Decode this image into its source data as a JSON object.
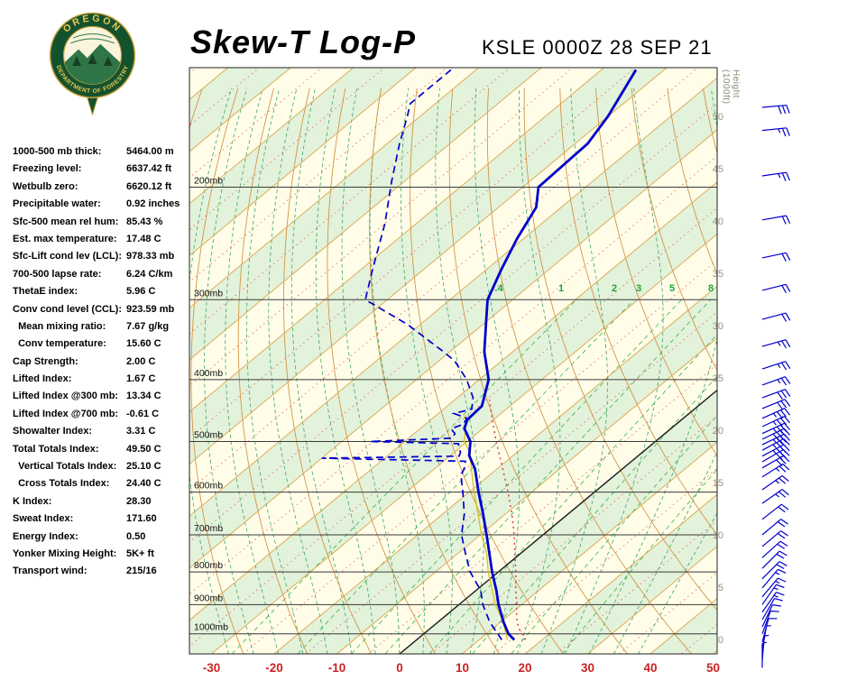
{
  "header": {
    "title": "Skew-T Log-P",
    "station": "KSLE 0000Z 28 SEP 21"
  },
  "logo": {
    "org_top": "OREGON",
    "org_bottom": "DEPARTMENT OF FORESTRY"
  },
  "indices": [
    {
      "label": "1000-500 mb thick:",
      "value": "5464.00 m"
    },
    {
      "label": "Freezing level:",
      "value": "6637.42 ft"
    },
    {
      "label": "Wetbulb zero:",
      "value": "6620.12 ft"
    },
    {
      "label": "Precipitable water:",
      "value": "0.92 inches"
    },
    {
      "label": "Sfc-500 mean rel hum:",
      "value": "85.43 %"
    },
    {
      "label": "Est. max temperature:",
      "value": "17.48 C"
    },
    {
      "label": "Sfc-Lift cond lev (LCL):",
      "value": "978.33 mb"
    },
    {
      "label": "700-500 lapse rate:",
      "value": "6.24 C/km"
    },
    {
      "label": "ThetaE index:",
      "value": "5.96 C"
    },
    {
      "label": "Conv cond level (CCL):",
      "value": "923.59 mb"
    },
    {
      "label": "  Mean mixing ratio:",
      "value": "7.67 g/kg"
    },
    {
      "label": "  Conv temperature:",
      "value": "15.60 C"
    },
    {
      "label": "Cap Strength:",
      "value": "2.00 C"
    },
    {
      "label": "Lifted Index:",
      "value": "1.67 C"
    },
    {
      "label": "Lifted Index @300 mb:",
      "value": "13.34 C"
    },
    {
      "label": "Lifted Index @700 mb:",
      "value": "-0.61 C"
    },
    {
      "label": "Showalter Index:",
      "value": "3.31 C"
    },
    {
      "label": "Total Totals Index:",
      "value": "49.50 C"
    },
    {
      "label": "  Vertical Totals Index:",
      "value": "25.10 C"
    },
    {
      "label": "  Cross Totals Index:",
      "value": "24.40 C"
    },
    {
      "label": "K Index:",
      "value": "28.30"
    },
    {
      "label": "Sweat Index:",
      "value": "171.60"
    },
    {
      "label": "Energy Index:",
      "value": "0.50"
    },
    {
      "label": "Yonker Mixing Height:",
      "value": "5K+ ft"
    },
    {
      "label": "Transport wind:",
      "value": "215/16"
    }
  ],
  "chart_data": {
    "type": "skew-t-log-p",
    "pressure_range": [
      130,
      1075
    ],
    "pressure_lines": [
      200,
      300,
      400,
      500,
      600,
      700,
      800,
      900,
      1000
    ],
    "pressure_label_suffix": "mb",
    "x_axis": {
      "unit": "C",
      "ticks": [
        -30,
        -20,
        -10,
        0,
        10,
        20,
        30,
        40,
        50
      ]
    },
    "height_scale": {
      "label_line1": "Height",
      "label_line2": "(1000ft)",
      "values": [
        50,
        45,
        40,
        35,
        30,
        25,
        20,
        15,
        10,
        5,
        0
      ]
    },
    "mixing_ratio_labels": [
      ".4",
      "1",
      "2",
      "3",
      "5",
      "8"
    ],
    "mixing_ratio_lines": [
      0.4,
      1,
      2,
      3,
      5,
      8,
      12,
      20
    ],
    "isotherm_step": 10,
    "profiles": {
      "temperature": {
        "color": "#0000cd",
        "points": [
          [
            131,
            -74.5
          ],
          [
            155,
            -70
          ],
          [
            171,
            -68
          ],
          [
            200,
            -67.5
          ],
          [
            215,
            -64
          ],
          [
            241,
            -61
          ],
          [
            270,
            -57.5
          ],
          [
            300,
            -54
          ],
          [
            328,
            -49.5
          ],
          [
            362,
            -44.5
          ],
          [
            400,
            -38.5
          ],
          [
            440,
            -34.5
          ],
          [
            462,
            -34.2
          ],
          [
            477,
            -33
          ],
          [
            500,
            -29.5
          ],
          [
            526,
            -27
          ],
          [
            552,
            -23.5
          ],
          [
            600,
            -18.5
          ],
          [
            650,
            -13.5
          ],
          [
            700,
            -9
          ],
          [
            752,
            -4.7
          ],
          [
            800,
            -1
          ],
          [
            856,
            3.3
          ],
          [
            900,
            6.3
          ],
          [
            959,
            10.5
          ],
          [
            1000,
            13.5
          ],
          [
            1022,
            15.6
          ]
        ]
      },
      "dewpoint": {
        "color": "#0000cd",
        "points": [
          [
            131,
            -104
          ],
          [
            148,
            -104
          ],
          [
            155,
            -102
          ],
          [
            171,
            -98
          ],
          [
            196,
            -92
          ],
          [
            228,
            -85
          ],
          [
            270,
            -78
          ],
          [
            300,
            -73.5
          ],
          [
            328,
            -62
          ],
          [
            362,
            -51
          ],
          [
            374,
            -47.5
          ],
          [
            400,
            -42
          ],
          [
            427,
            -37.5
          ],
          [
            445,
            -35.5
          ],
          [
            452,
            -37.5
          ],
          [
            460,
            -34.5
          ],
          [
            470,
            -34
          ],
          [
            478,
            -35
          ],
          [
            486,
            -33.5
          ],
          [
            494,
            -33
          ],
          [
            500,
            -45.5
          ],
          [
            504,
            -31
          ],
          [
            512,
            -30
          ],
          [
            520,
            -29
          ],
          [
            527,
            -28.5
          ],
          [
            531,
            -50
          ],
          [
            537,
            -26.5
          ],
          [
            548,
            -25.5
          ],
          [
            565,
            -24.5
          ],
          [
            600,
            -21
          ],
          [
            650,
            -16.5
          ],
          [
            700,
            -13
          ],
          [
            752,
            -8.5
          ],
          [
            800,
            -4.5
          ],
          [
            856,
            0.8
          ],
          [
            900,
            3.8
          ],
          [
            959,
            8.3
          ],
          [
            1000,
            11.8
          ],
          [
            1022,
            13.6
          ]
        ]
      },
      "wetbulb": {
        "color": "#d8c422",
        "points": [
          [
            1022,
            14.5
          ],
          [
            950,
            9.8
          ],
          [
            900,
            5.8
          ],
          [
            850,
            2.2
          ],
          [
            800,
            -1.6
          ],
          [
            750,
            -5.3
          ],
          [
            700,
            -9.8
          ],
          [
            650,
            -14.3
          ],
          [
            600,
            -19.2
          ],
          [
            550,
            -24.3
          ],
          [
            520,
            -27.5
          ],
          [
            500,
            -30.5
          ],
          [
            470,
            -33.5
          ],
          [
            455,
            -35.5
          ]
        ]
      },
      "parcel": {
        "color": "#d94040",
        "points": [
          [
            1022,
            17.4
          ],
          [
            978,
            13.9
          ],
          [
            940,
            11.5
          ],
          [
            900,
            9.2
          ],
          [
            850,
            6
          ],
          [
            800,
            2.8
          ],
          [
            750,
            -0.8
          ],
          [
            700,
            -4.6
          ],
          [
            650,
            -8.9
          ],
          [
            600,
            -13.8
          ],
          [
            550,
            -19.3
          ],
          [
            500,
            -25.4
          ],
          [
            460,
            -30.5
          ],
          [
            430,
            -34.5
          ]
        ]
      }
    },
    "winds": {
      "color": "#0000cd",
      "barbs": [
        {
          "p": 150,
          "dir": 265,
          "kt": 30
        },
        {
          "p": 163,
          "dir": 264,
          "kt": 27
        },
        {
          "p": 192,
          "dir": 262,
          "kt": 24
        },
        {
          "p": 225,
          "dir": 260,
          "kt": 22
        },
        {
          "p": 258,
          "dir": 258,
          "kt": 20
        },
        {
          "p": 290,
          "dir": 256,
          "kt": 20
        },
        {
          "p": 322,
          "dir": 255,
          "kt": 22
        },
        {
          "p": 355,
          "dir": 254,
          "kt": 25
        },
        {
          "p": 385,
          "dir": 252,
          "kt": 26
        },
        {
          "p": 408,
          "dir": 250,
          "kt": 27
        },
        {
          "p": 427,
          "dir": 250,
          "kt": 29
        },
        {
          "p": 444,
          "dir": 248,
          "kt": 31
        },
        {
          "p": 460,
          "dir": 246,
          "kt": 33
        },
        {
          "p": 474,
          "dir": 245,
          "kt": 35
        },
        {
          "p": 486,
          "dir": 245,
          "kt": 36
        },
        {
          "p": 496,
          "dir": 244,
          "kt": 38
        },
        {
          "p": 506,
          "dir": 244,
          "kt": 36
        },
        {
          "p": 516,
          "dir": 242,
          "kt": 35
        },
        {
          "p": 527,
          "dir": 242,
          "kt": 33
        },
        {
          "p": 538,
          "dir": 240,
          "kt": 31
        },
        {
          "p": 550,
          "dir": 240,
          "kt": 28
        },
        {
          "p": 568,
          "dir": 238,
          "kt": 26
        },
        {
          "p": 595,
          "dir": 235,
          "kt": 25
        },
        {
          "p": 625,
          "dir": 235,
          "kt": 24
        },
        {
          "p": 662,
          "dir": 232,
          "kt": 22
        },
        {
          "p": 700,
          "dir": 230,
          "kt": 20
        },
        {
          "p": 730,
          "dir": 230,
          "kt": 20
        },
        {
          "p": 760,
          "dir": 228,
          "kt": 18
        },
        {
          "p": 790,
          "dir": 225,
          "kt": 20
        },
        {
          "p": 820,
          "dir": 225,
          "kt": 18
        },
        {
          "p": 848,
          "dir": 220,
          "kt": 17
        },
        {
          "p": 875,
          "dir": 220,
          "kt": 15
        },
        {
          "p": 900,
          "dir": 215,
          "kt": 15
        },
        {
          "p": 925,
          "dir": 215,
          "kt": 14
        },
        {
          "p": 950,
          "dir": 210,
          "kt": 12
        },
        {
          "p": 975,
          "dir": 205,
          "kt": 10
        },
        {
          "p": 1000,
          "dir": 200,
          "kt": 10
        },
        {
          "p": 1030,
          "dir": 195,
          "kt": 8
        },
        {
          "p": 1060,
          "dir": 190,
          "kt": 6
        },
        {
          "p": 1100,
          "dir": 185,
          "kt": 5
        },
        {
          "p": 1130,
          "dir": 180,
          "kt": 4
        }
      ]
    },
    "colors": {
      "band_cream": "#fffde8",
      "band_green": "#e3f2da",
      "isotherm": "#dba54e",
      "dry_adiabat": "#cf9040",
      "moist_adiabat": "#3aa76d",
      "mixing": "#35b24a",
      "mixing_label": "#1ea43d",
      "minor_isotherm": "#e07070",
      "pressure_line": "#3a3a3a",
      "zero_isotherm": "#1a1a1a",
      "axis_red": "#cc2222",
      "height_text": "#99947d"
    }
  }
}
